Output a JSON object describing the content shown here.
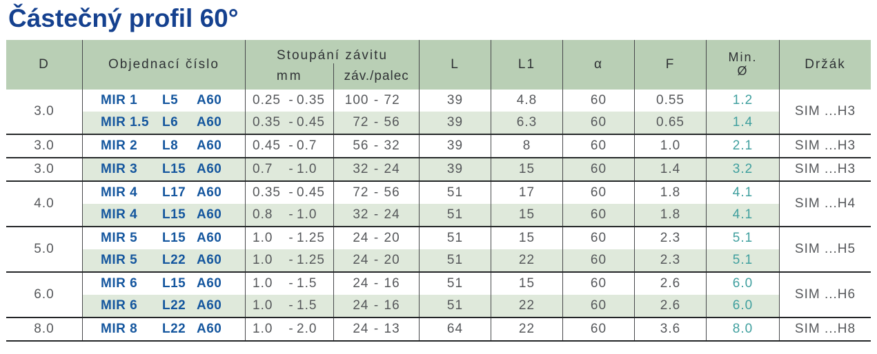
{
  "page": {
    "title": "Částečný profil 60°"
  },
  "colors": {
    "title_blue": "#15418f",
    "order_number_blue": "#14569e",
    "min_diameter_teal": "#3f9f9e",
    "header_green": "#b9cfb5",
    "stripe_green": "#dfe9db",
    "text_gray": "#55575a",
    "grid_line": "#46474a",
    "group_line": "#232527"
  },
  "table": {
    "headers": {
      "d": "D",
      "order": "Objednací číslo",
      "pitch": "Stoupání závitu",
      "pitch_mm": "mm",
      "pitch_tpi": "záv./palec",
      "l": "L",
      "l1": "L1",
      "alpha": "α",
      "f": "F",
      "min_line1": "Min.",
      "min_line2": "Ø",
      "holder": "Držák"
    },
    "groups": [
      {
        "d": "3.0",
        "holder": "SIM ...H3",
        "rows": [
          {
            "order": [
              "MIR 1",
              "L5",
              "A60"
            ],
            "mm_from": "0.25",
            "mm_to": "0.35",
            "tpi_from": "100",
            "tpi_to": "72",
            "l": "39",
            "l1": "4.8",
            "alpha": "60",
            "f": "0.55",
            "min": "1.2"
          },
          {
            "order": [
              "MIR 1.5",
              "L6",
              "A60"
            ],
            "mm_from": "0.35",
            "mm_to": "0.45",
            "tpi_from": "72",
            "tpi_to": "56",
            "l": "39",
            "l1": "6.3",
            "alpha": "60",
            "f": "0.65",
            "min": "1.4"
          }
        ]
      },
      {
        "d": "3.0",
        "holder": "SIM ...H3",
        "rows": [
          {
            "order": [
              "MIR 2",
              "L8",
              "A60"
            ],
            "mm_from": "0.45",
            "mm_to": "0.7",
            "tpi_from": "56",
            "tpi_to": "32",
            "l": "39",
            "l1": "8",
            "alpha": "60",
            "f": "1.0",
            "min": "2.1"
          }
        ]
      },
      {
        "d": "3.0",
        "holder": "SIM ...H3",
        "rows": [
          {
            "order": [
              "MIR 3",
              "L15",
              "A60"
            ],
            "mm_from": "0.7",
            "mm_to": "1.0",
            "tpi_from": "32",
            "tpi_to": "24",
            "l": "39",
            "l1": "15",
            "alpha": "60",
            "f": "1.4",
            "min": "3.2"
          }
        ]
      },
      {
        "d": "4.0",
        "holder": "SIM ...H4",
        "rows": [
          {
            "order": [
              "MIR 4",
              "L17",
              "A60"
            ],
            "mm_from": "0.35",
            "mm_to": "0.45",
            "tpi_from": "72",
            "tpi_to": "56",
            "l": "51",
            "l1": "17",
            "alpha": "60",
            "f": "1.8",
            "min": "4.1"
          },
          {
            "order": [
              "MIR 4",
              "L15",
              "A60"
            ],
            "mm_from": "0.8",
            "mm_to": "1.0",
            "tpi_from": "32",
            "tpi_to": "24",
            "l": "51",
            "l1": "15",
            "alpha": "60",
            "f": "1.8",
            "min": "4.1"
          }
        ]
      },
      {
        "d": "5.0",
        "holder": "SIM ...H5",
        "rows": [
          {
            "order": [
              "MIR 5",
              "L15",
              "A60"
            ],
            "mm_from": "1.0",
            "mm_to": "1.25",
            "tpi_from": "24",
            "tpi_to": "20",
            "l": "51",
            "l1": "15",
            "alpha": "60",
            "f": "2.3",
            "min": "5.1"
          },
          {
            "order": [
              "MIR 5",
              "L22",
              "A60"
            ],
            "mm_from": "1.0",
            "mm_to": "1.25",
            "tpi_from": "24",
            "tpi_to": "20",
            "l": "51",
            "l1": "22",
            "alpha": "60",
            "f": "2.3",
            "min": "5.1"
          }
        ]
      },
      {
        "d": "6.0",
        "holder": "SIM ...H6",
        "rows": [
          {
            "order": [
              "MIR 6",
              "L15",
              "A60"
            ],
            "mm_from": "1.0",
            "mm_to": "1.5",
            "tpi_from": "24",
            "tpi_to": "16",
            "l": "51",
            "l1": "15",
            "alpha": "60",
            "f": "2.6",
            "min": "6.0"
          },
          {
            "order": [
              "MIR 6",
              "L22",
              "A60"
            ],
            "mm_from": "1.0",
            "mm_to": "1.5",
            "tpi_from": "24",
            "tpi_to": "16",
            "l": "51",
            "l1": "22",
            "alpha": "60",
            "f": "2.6",
            "min": "6.0"
          }
        ]
      },
      {
        "d": "8.0",
        "holder": "SIM ...H8",
        "rows": [
          {
            "order": [
              "MIR 8",
              "L22",
              "A60"
            ],
            "mm_from": "1.0",
            "mm_to": "2.0",
            "tpi_from": "24",
            "tpi_to": "13",
            "l": "64",
            "l1": "22",
            "alpha": "60",
            "f": "3.6",
            "min": "8.0"
          }
        ]
      }
    ]
  }
}
